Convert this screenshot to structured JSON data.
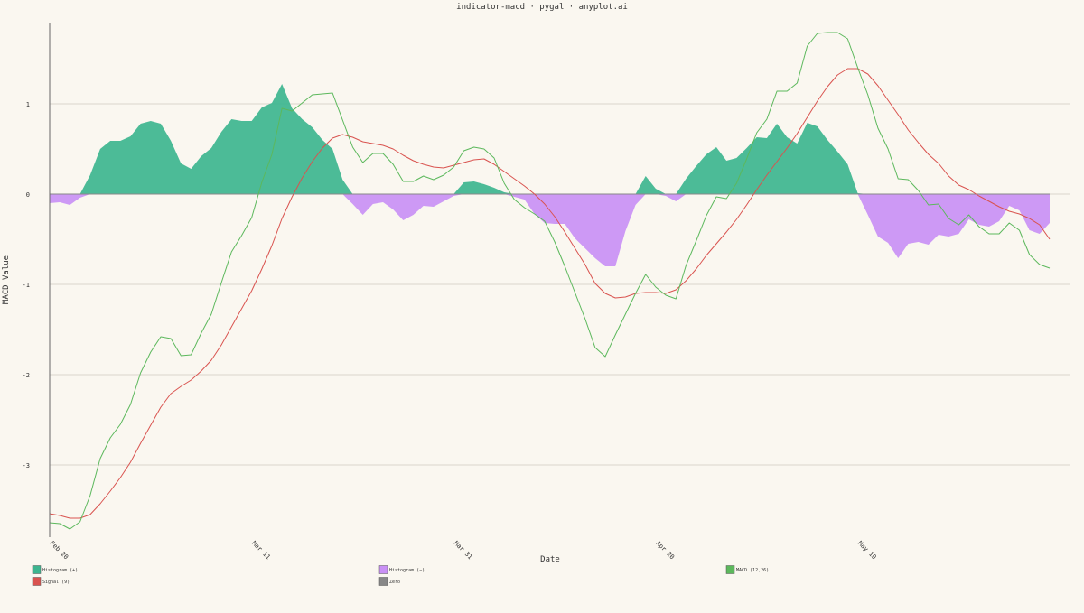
{
  "chart_data": {
    "type": "line",
    "title": "indicator-macd · pygal · anyplot.ai",
    "xlabel": "Date",
    "ylabel": "MACD Value",
    "ylim": [
      -3.8,
      1.9
    ],
    "yticks": [
      1,
      0,
      -1,
      -2,
      -3
    ],
    "ytick_labels": [
      "1",
      "0",
      "-1",
      "-2",
      "-3"
    ],
    "x_count": 100,
    "x_ticks": [
      {
        "index": 0,
        "label": "Feb 20"
      },
      {
        "index": 20,
        "label": "Mar 11"
      },
      {
        "index": 40,
        "label": "Mar 31"
      },
      {
        "index": 60,
        "label": "Apr 20"
      },
      {
        "index": 80,
        "label": "May 10"
      }
    ],
    "colors": {
      "hist_pos": "#3db58f",
      "hist_neg": "#c990f5",
      "macd": "#5cb85c",
      "signal": "#d9534f",
      "zero": "#888888",
      "grid": "#cfcac0",
      "axis": "#666666"
    },
    "legend": [
      {
        "label": "Histogram (+)",
        "color": "#3db58f"
      },
      {
        "label": "Histogram (−)",
        "color": "#c990f5"
      },
      {
        "label": "MACD (12,26)",
        "color": "#5cb85c"
      },
      {
        "label": "Signal (9)",
        "color": "#d9534f"
      },
      {
        "label": "Zero",
        "color": "#888888"
      }
    ],
    "series": [
      {
        "name": "MACD (12,26)",
        "values": [
          -3.64,
          -3.65,
          -3.71,
          -3.63,
          -3.34,
          -2.93,
          -2.7,
          -2.55,
          -2.33,
          -1.98,
          -1.75,
          -1.58,
          -1.6,
          -1.79,
          -1.78,
          -1.54,
          -1.33,
          -0.98,
          -0.64,
          -0.46,
          -0.26,
          0.13,
          0.44,
          0.95,
          0.92,
          1.01,
          1.1,
          1.11,
          1.12,
          0.82,
          0.52,
          0.35,
          0.45,
          0.45,
          0.33,
          0.14,
          0.14,
          0.2,
          0.16,
          0.21,
          0.3,
          0.48,
          0.52,
          0.5,
          0.4,
          0.12,
          -0.06,
          -0.15,
          -0.22,
          -0.3,
          -0.53,
          -0.8,
          -1.09,
          -1.38,
          -1.7,
          -1.8,
          -1.56,
          -1.33,
          -1.1,
          -0.89,
          -1.03,
          -1.12,
          -1.16,
          -0.79,
          -0.52,
          -0.24,
          -0.03,
          -0.05,
          0.12,
          0.39,
          0.68,
          0.83,
          1.14,
          1.14,
          1.23,
          1.64,
          1.78,
          1.79,
          1.79,
          1.72,
          1.4,
          1.1,
          0.73,
          0.5,
          0.17,
          0.16,
          0.04,
          -0.12,
          -0.11,
          -0.27,
          -0.34,
          -0.23,
          -0.36,
          -0.44,
          -0.44,
          -0.32,
          -0.4,
          -0.67,
          -0.78,
          -0.82
        ]
      },
      {
        "name": "Signal (9)",
        "values": [
          -3.54,
          -3.56,
          -3.59,
          -3.59,
          -3.55,
          -3.43,
          -3.29,
          -3.14,
          -2.97,
          -2.76,
          -2.56,
          -2.36,
          -2.21,
          -2.13,
          -2.06,
          -1.96,
          -1.84,
          -1.67,
          -1.47,
          -1.27,
          -1.07,
          -0.83,
          -0.57,
          -0.27,
          -0.03,
          0.18,
          0.36,
          0.51,
          0.62,
          0.66,
          0.63,
          0.58,
          0.56,
          0.54,
          0.5,
          0.43,
          0.37,
          0.33,
          0.3,
          0.29,
          0.32,
          0.35,
          0.38,
          0.39,
          0.33,
          0.25,
          0.17,
          0.09,
          0.0,
          -0.11,
          -0.25,
          -0.42,
          -0.6,
          -0.78,
          -0.99,
          -1.1,
          -1.15,
          -1.14,
          -1.1,
          -1.09,
          -1.09,
          -1.1,
          -1.06,
          -0.96,
          -0.83,
          -0.68,
          -0.55,
          -0.42,
          -0.28,
          -0.12,
          0.05,
          0.21,
          0.36,
          0.51,
          0.67,
          0.85,
          1.03,
          1.19,
          1.32,
          1.39,
          1.39,
          1.33,
          1.2,
          1.04,
          0.88,
          0.71,
          0.57,
          0.44,
          0.34,
          0.2,
          0.1,
          0.05,
          -0.02,
          -0.08,
          -0.14,
          -0.19,
          -0.22,
          -0.27,
          -0.34,
          -0.5
        ]
      },
      {
        "name": "Histogram",
        "values": [
          -0.1,
          -0.09,
          -0.12,
          -0.04,
          0.21,
          0.5,
          0.59,
          0.59,
          0.64,
          0.78,
          0.81,
          0.78,
          0.59,
          0.34,
          0.28,
          0.42,
          0.51,
          0.69,
          0.83,
          0.81,
          0.81,
          0.96,
          1.01,
          1.22,
          0.95,
          0.83,
          0.74,
          0.6,
          0.5,
          0.16,
          -0.11,
          -0.23,
          -0.11,
          -0.09,
          -0.17,
          -0.29,
          -0.23,
          -0.13,
          -0.14,
          -0.08,
          -0.02,
          0.13,
          0.14,
          0.11,
          0.07,
          0.02,
          -0.03,
          -0.06,
          -0.22,
          -0.32,
          -0.33,
          -0.33,
          -0.49,
          -0.6,
          -0.71,
          -0.8,
          -0.8,
          -0.41,
          -0.12,
          0.2,
          0.06,
          -0.02,
          -0.08,
          0.17,
          0.31,
          0.44,
          0.52,
          0.37,
          0.4,
          0.51,
          0.63,
          0.62,
          0.78,
          0.63,
          0.56,
          0.79,
          0.75,
          0.6,
          0.47,
          0.33,
          0.01,
          -0.23,
          -0.47,
          -0.54,
          -0.71,
          -0.55,
          -0.53,
          -0.56,
          -0.45,
          -0.47,
          -0.44,
          -0.28,
          -0.34,
          -0.36,
          -0.3,
          -0.13,
          -0.18,
          -0.4,
          -0.44,
          -0.32
        ]
      }
    ]
  }
}
